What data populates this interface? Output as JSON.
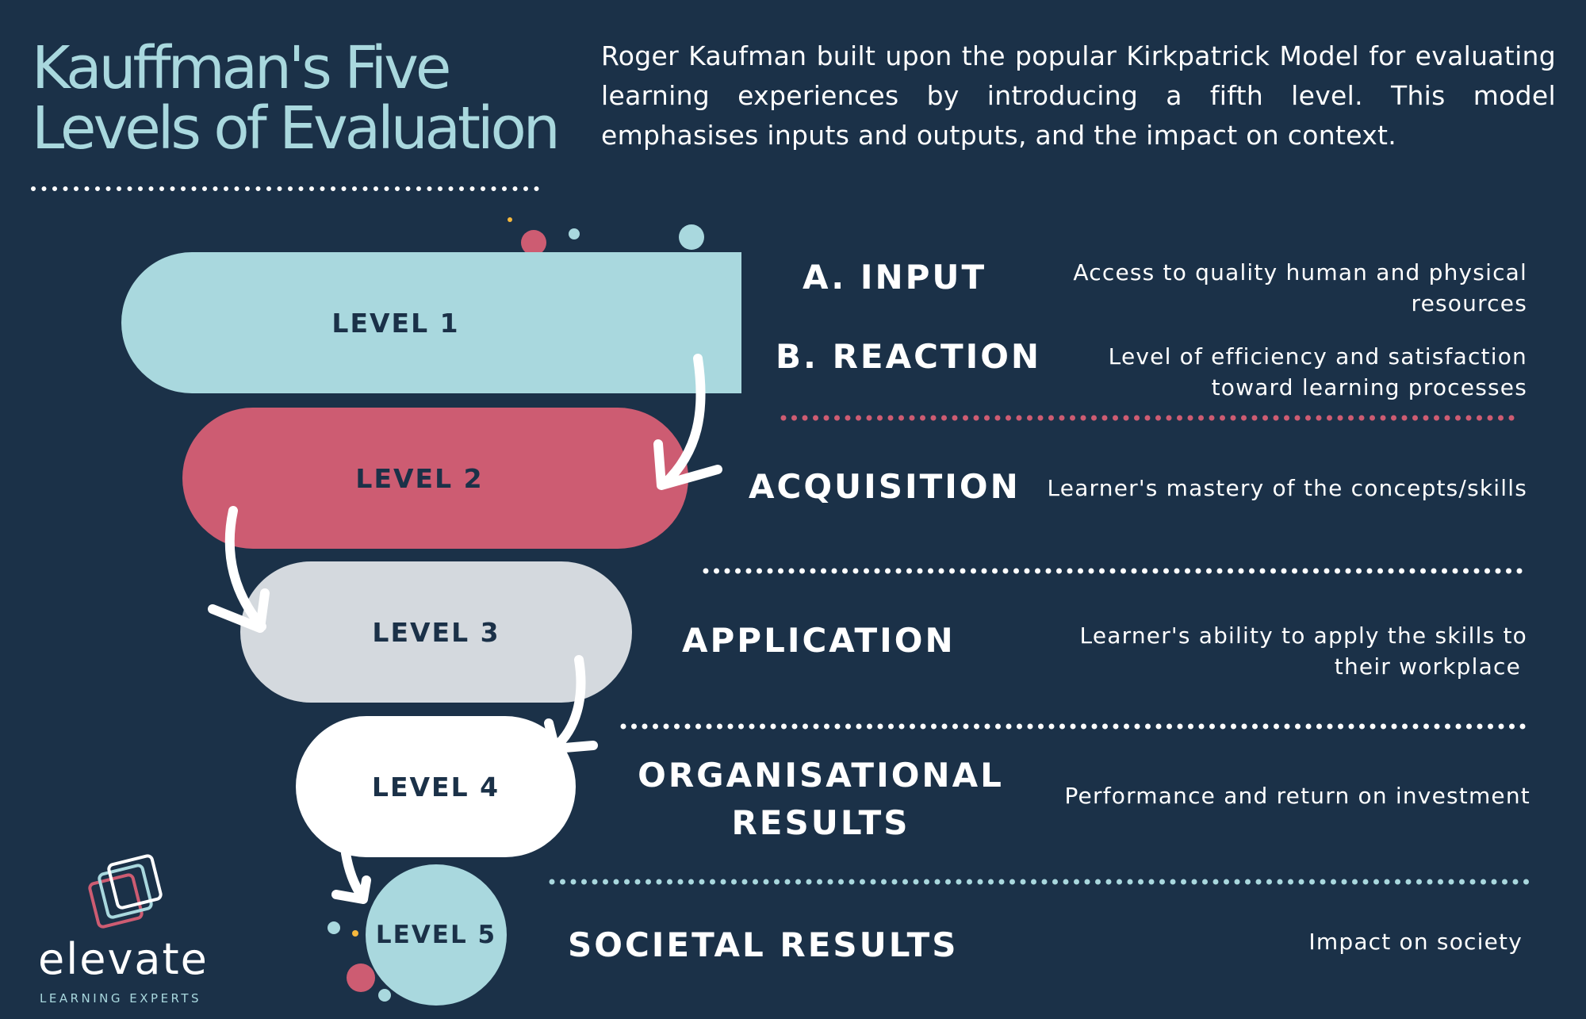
{
  "title": {
    "line1": "Kauffman's Five",
    "line2": "Levels of Evaluation"
  },
  "intro": "Roger Kaufman built upon the popular Kirkpatrick Model for evaluating learning experiences by introducing a fifth level. This model emphasises inputs and outputs, and the impact on context.",
  "levels": [
    {
      "label": "LEVEL 1",
      "color": "#a9d8de"
    },
    {
      "label": "LEVEL 2",
      "color": "#cd5c72"
    },
    {
      "label": "LEVEL 3",
      "color": "#d4d9de"
    },
    {
      "label": "LEVEL 4",
      "color": "#ffffff"
    },
    {
      "label": "LEVEL 5",
      "color": "#a9d8de"
    }
  ],
  "rows": [
    {
      "heading": "A. INPUT",
      "description": [
        "Access to quality human and physical",
        "resources"
      ]
    },
    {
      "heading": "B. REACTION",
      "description": [
        "Level of efficiency and satisfaction",
        "toward learning processes"
      ]
    },
    {
      "heading": "ACQUISITION",
      "description": [
        "Learner's mastery of the concepts/skills"
      ]
    },
    {
      "heading": "APPLICATION",
      "description": [
        "Learner's ability to apply the skills to",
        "their workplace"
      ]
    },
    {
      "heading_lines": [
        "ORGANISATIONAL",
        "RESULTS"
      ],
      "description": [
        "Performance and return on investment"
      ]
    },
    {
      "heading": "SOCIETAL RESULTS",
      "description": [
        "Impact on society"
      ]
    }
  ],
  "logo": {
    "word": "elevate",
    "subtitle": "LEARNING EXPERTS"
  },
  "colors": {
    "background": "#1b3148",
    "teal": "#a9d8de",
    "pink": "#cd5c72",
    "grey": "#d4d9de",
    "gold": "#f5b83d"
  }
}
